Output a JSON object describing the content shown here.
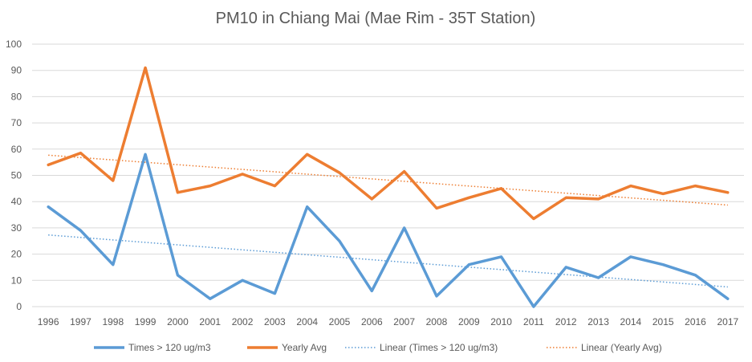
{
  "chart_data": {
    "type": "line",
    "title": "PM10 in Chiang Mai (Mae Rim - 35T Station)",
    "xlabel": "",
    "ylabel": "",
    "ylim": [
      0,
      100
    ],
    "yticks": [
      0,
      10,
      20,
      30,
      40,
      50,
      60,
      70,
      80,
      90,
      100
    ],
    "grid": true,
    "legend_position": "bottom",
    "categories": [
      "1996",
      "1997",
      "1998",
      "1999",
      "2000",
      "2001",
      "2002",
      "2003",
      "2004",
      "2005",
      "2006",
      "2007",
      "2008",
      "2009",
      "2010",
      "2011",
      "2012",
      "2013",
      "2014",
      "2015",
      "2016",
      "2017"
    ],
    "series": [
      {
        "name": "Times > 120 ug/m3",
        "color": "#5b9bd5",
        "values": [
          38,
          29,
          16,
          58,
          12,
          3,
          10,
          5,
          38,
          25,
          6,
          30,
          4,
          16,
          19,
          0,
          15,
          11,
          19,
          16,
          12,
          3
        ]
      },
      {
        "name": "Yearly Avg",
        "color": "#ed7d31",
        "values": [
          54,
          58.5,
          48,
          91,
          43.5,
          46,
          50.5,
          46,
          58,
          51,
          41,
          51.5,
          37.5,
          41.5,
          45,
          33.5,
          41.5,
          41,
          46,
          43,
          46,
          43.5
        ]
      }
    ],
    "trendlines": [
      {
        "name": "Linear (Times > 120 ug/m3)",
        "color": "#5b9bd5",
        "start": 27.3,
        "end": 7.5
      },
      {
        "name": "Linear (Yearly Avg)",
        "color": "#ed7d31",
        "start": 57.7,
        "end": 38.7
      }
    ]
  }
}
